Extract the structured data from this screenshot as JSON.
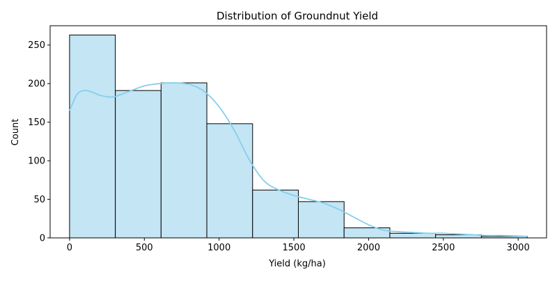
{
  "chart_data": {
    "type": "bar",
    "title": "Distribution of Groundnut Yield",
    "xlabel": "Yield (kg/ha)",
    "ylabel": "Count",
    "xlim": [
      -130,
      3190
    ],
    "ylim": [
      0,
      275
    ],
    "xticks": [
      0,
      500,
      1000,
      1500,
      2000,
      2500,
      3000
    ],
    "yticks": [
      0,
      50,
      100,
      150,
      200,
      250
    ],
    "bins": [
      {
        "x0": 0,
        "x1": 306,
        "count": 263
      },
      {
        "x0": 306,
        "x1": 612,
        "count": 191
      },
      {
        "x0": 612,
        "x1": 918,
        "count": 201
      },
      {
        "x0": 918,
        "x1": 1224,
        "count": 148
      },
      {
        "x0": 1224,
        "x1": 1530,
        "count": 62
      },
      {
        "x0": 1530,
        "x1": 1836,
        "count": 47
      },
      {
        "x0": 1836,
        "x1": 2142,
        "count": 13
      },
      {
        "x0": 2142,
        "x1": 2448,
        "count": 6
      },
      {
        "x0": 2448,
        "x1": 2754,
        "count": 4
      },
      {
        "x0": 2754,
        "x1": 3060,
        "count": 2
      }
    ],
    "kde": {
      "x": [
        0,
        50,
        100,
        150,
        200,
        250,
        300,
        400,
        500,
        600,
        700,
        800,
        900,
        1000,
        1100,
        1200,
        1300,
        1400,
        1500,
        1600,
        1700,
        1800,
        1900,
        2000,
        2100,
        2200,
        2300,
        2400,
        2500,
        2600,
        2700,
        2800,
        2900,
        3060
      ],
      "y": [
        165,
        186,
        191,
        189,
        185,
        183,
        183,
        190,
        197,
        200,
        201,
        199,
        190,
        170,
        140,
        102,
        74,
        62,
        55,
        50,
        45,
        37,
        27,
        17,
        10,
        8,
        7,
        6,
        6,
        5,
        4,
        3,
        3,
        2
      ]
    },
    "colors": {
      "bar_fill": "#c3e5f4",
      "bar_edge": "#000000",
      "kde_line": "#87ceeb"
    },
    "grid": false,
    "legend": "none"
  }
}
